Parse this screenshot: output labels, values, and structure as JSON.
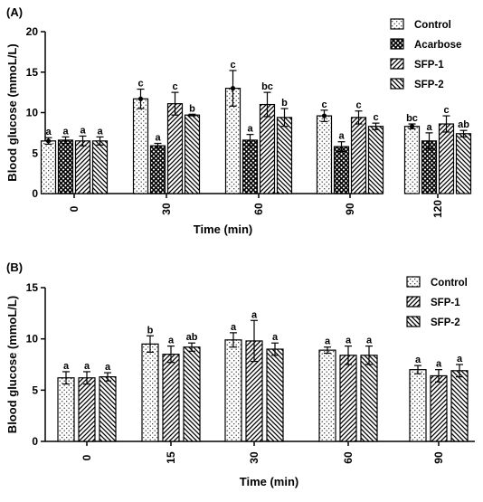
{
  "chart_data": [
    {
      "type": "bar",
      "panel_label": "(A)",
      "xlabel": "Time (min)",
      "ylabel": "Blood glucose (mmoL/L)",
      "ylim": [
        0,
        20
      ],
      "yticks": [
        0,
        5,
        10,
        15,
        20
      ],
      "categories": [
        "0",
        "30",
        "60",
        "90",
        "120"
      ],
      "legend_position": "top-right",
      "grid": false,
      "series": [
        {
          "name": "Control",
          "pattern": "dots",
          "values": [
            6.5,
            11.7,
            13.0,
            9.6,
            8.3
          ],
          "errors": [
            0.4,
            1.2,
            2.2,
            0.7,
            0.3
          ],
          "letters": [
            "a",
            "c",
            "c",
            "c",
            "bc"
          ],
          "center_marker": true
        },
        {
          "name": "Acarbose",
          "pattern": "crosshatch",
          "values": [
            6.6,
            5.9,
            6.6,
            5.8,
            6.5
          ],
          "errors": [
            0.4,
            0.3,
            0.7,
            0.6,
            1.0
          ],
          "letters": [
            "a",
            "a",
            "a",
            "a",
            "a"
          ]
        },
        {
          "name": "SFP-1",
          "pattern": "diag-up",
          "values": [
            6.5,
            11.1,
            11.0,
            9.4,
            8.6
          ],
          "errors": [
            0.6,
            1.4,
            1.5,
            0.8,
            1.0
          ],
          "letters": [
            "a",
            "c",
            "bc",
            "c",
            "c"
          ]
        },
        {
          "name": "SFP-2",
          "pattern": "diag-down",
          "values": [
            6.5,
            9.7,
            9.4,
            8.3,
            7.4
          ],
          "errors": [
            0.5,
            0.1,
            1.1,
            0.4,
            0.4
          ],
          "letters": [
            "a",
            "b",
            "b",
            "c",
            "ab"
          ]
        }
      ]
    },
    {
      "type": "bar",
      "panel_label": "(B)",
      "xlabel": "Time (min)",
      "ylabel": "Blood glucose (mmoL/L)",
      "ylim": [
        0,
        15
      ],
      "yticks": [
        0,
        5,
        10,
        15
      ],
      "categories": [
        "0",
        "15",
        "30",
        "60",
        "90"
      ],
      "legend_position": "top-right",
      "grid": false,
      "series": [
        {
          "name": "Control",
          "pattern": "dots",
          "values": [
            6.2,
            9.5,
            9.9,
            8.9,
            7.0
          ],
          "errors": [
            0.6,
            0.8,
            0.7,
            0.3,
            0.4
          ],
          "letters": [
            "a",
            "b",
            "a",
            "a",
            "a"
          ]
        },
        {
          "name": "SFP-1",
          "pattern": "diag-up",
          "values": [
            6.2,
            8.5,
            9.8,
            8.4,
            6.4
          ],
          "errors": [
            0.6,
            0.8,
            2.0,
            0.9,
            0.6
          ],
          "letters": [
            "a",
            "a",
            "a",
            "a",
            "a"
          ]
        },
        {
          "name": "SFP-2",
          "pattern": "diag-down",
          "values": [
            6.3,
            9.2,
            9.0,
            8.4,
            6.9
          ],
          "errors": [
            0.4,
            0.4,
            0.6,
            0.9,
            0.6
          ],
          "letters": [
            "a",
            "ab",
            "a",
            "a",
            "a"
          ]
        }
      ]
    }
  ]
}
